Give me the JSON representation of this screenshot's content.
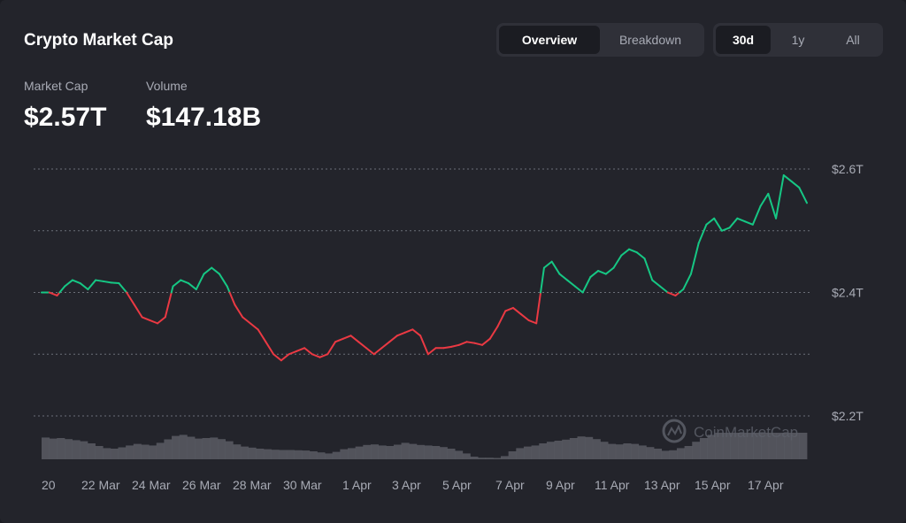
{
  "header": {
    "title": "Crypto Market Cap",
    "view_tabs": [
      {
        "label": "Overview",
        "active": true
      },
      {
        "label": "Breakdown",
        "active": false
      }
    ],
    "range_tabs": [
      {
        "label": "30d",
        "active": true
      },
      {
        "label": "1y",
        "active": false
      },
      {
        "label": "All",
        "active": false
      }
    ]
  },
  "metrics": {
    "market_cap": {
      "label": "Market Cap",
      "value": "$2.57T"
    },
    "volume": {
      "label": "Volume",
      "value": "$147.18B"
    }
  },
  "watermark": "CoinMarketCap",
  "colors": {
    "up": "#16c784",
    "down": "#ea3943",
    "volume": "#5a5c64",
    "grid": "#6b6e78",
    "background": "#23242b"
  },
  "chart_data": {
    "type": "line",
    "ylim": [
      2.2,
      2.6
    ],
    "y_ticks": [
      {
        "value": 2.6,
        "label": "$2.6T"
      },
      {
        "value": 2.4,
        "label": "$2.4T"
      },
      {
        "value": 2.2,
        "label": "$2.2T"
      }
    ],
    "x_start": 20,
    "x_end": 18.5,
    "x_ticks": [
      "20",
      "22 Mar",
      "24 Mar",
      "26 Mar",
      "28 Mar",
      "30 Mar",
      "1 Apr",
      "3 Apr",
      "5 Apr",
      "7 Apr",
      "9 Apr",
      "11 Apr",
      "13 Apr",
      "15 Apr",
      "17 Apr"
    ],
    "reference_value": 2.4,
    "grid": "dotted horizontal",
    "series": [
      {
        "values": [
          2.4,
          2.4,
          2.395,
          2.41,
          2.42,
          2.415,
          2.405,
          2.42,
          2.418,
          2.416,
          2.415,
          2.4,
          2.38,
          2.36,
          2.355,
          2.35,
          2.36,
          2.41,
          2.42,
          2.415,
          2.405,
          2.43,
          2.44,
          2.43,
          2.41,
          2.38,
          2.36,
          2.35,
          2.34,
          2.32,
          2.3,
          2.29,
          2.3,
          2.305,
          2.31,
          2.3,
          2.295,
          2.3,
          2.32,
          2.325,
          2.33,
          2.32,
          2.31,
          2.3,
          2.31,
          2.32,
          2.33,
          2.335,
          2.34,
          2.33,
          2.3,
          2.31,
          2.31,
          2.312,
          2.315,
          2.32,
          2.318,
          2.315,
          2.325,
          2.345,
          2.37,
          2.375,
          2.365,
          2.355,
          2.35,
          2.44,
          2.45,
          2.43,
          2.42,
          2.41,
          2.4,
          2.425,
          2.435,
          2.43,
          2.44,
          2.46,
          2.47,
          2.465,
          2.455,
          2.42,
          2.41,
          2.4,
          2.395,
          2.405,
          2.43,
          2.48,
          2.51,
          2.52,
          2.5,
          2.505,
          2.52,
          2.515,
          2.51,
          2.54,
          2.56,
          2.52,
          2.59,
          2.58,
          2.57,
          2.545
        ]
      }
    ],
    "volume": [
      0.82,
      0.78,
      0.8,
      0.76,
      0.72,
      0.68,
      0.6,
      0.5,
      0.42,
      0.4,
      0.45,
      0.52,
      0.58,
      0.55,
      0.52,
      0.62,
      0.75,
      0.88,
      0.92,
      0.85,
      0.78,
      0.8,
      0.82,
      0.76,
      0.68,
      0.56,
      0.48,
      0.44,
      0.4,
      0.38,
      0.36,
      0.35,
      0.35,
      0.34,
      0.33,
      0.3,
      0.26,
      0.22,
      0.28,
      0.38,
      0.42,
      0.48,
      0.54,
      0.56,
      0.52,
      0.5,
      0.55,
      0.62,
      0.58,
      0.54,
      0.52,
      0.5,
      0.46,
      0.4,
      0.32,
      0.22,
      0.1,
      0.06,
      0.06,
      0.05,
      0.12,
      0.3,
      0.42,
      0.48,
      0.52,
      0.6,
      0.66,
      0.7,
      0.74,
      0.8,
      0.86,
      0.84,
      0.76,
      0.66,
      0.58,
      0.56,
      0.6,
      0.58,
      0.52,
      0.46,
      0.4,
      0.32,
      0.34,
      0.42,
      0.5,
      0.66,
      0.8,
      0.92,
      1.0,
      1.0,
      1.0,
      1.0,
      1.0,
      1.0,
      1.0,
      1.0,
      1.0,
      1.0,
      1.0,
      1.0
    ]
  }
}
